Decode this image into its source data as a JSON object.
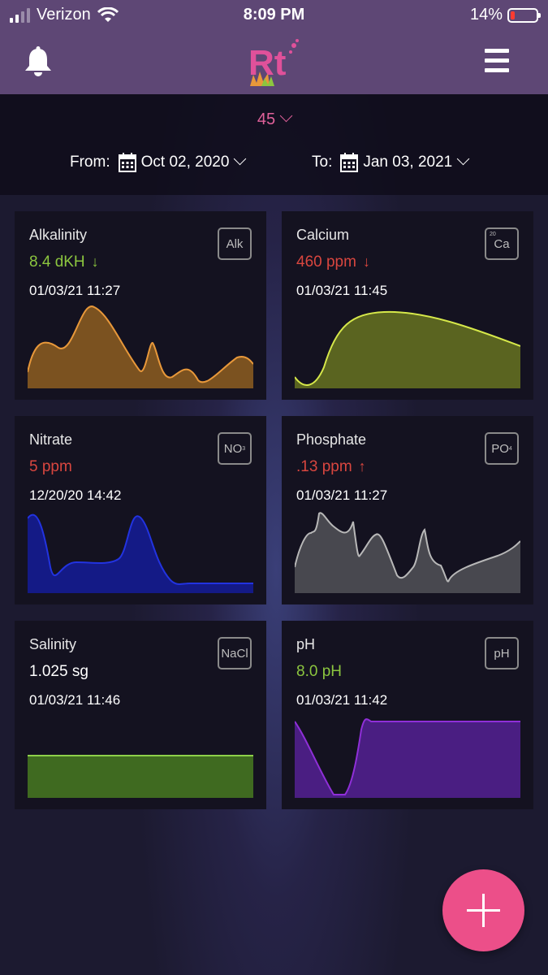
{
  "status_bar": {
    "carrier": "Verizon",
    "time": "8:09 PM",
    "battery": "14%"
  },
  "header": {
    "logo_text": "Rt",
    "left_icon": "bell-icon",
    "right_icon": "hamburger-menu-icon"
  },
  "filter": {
    "period": "45",
    "from_label": "From:",
    "from_date": "Oct 02, 2020",
    "to_label": "To:",
    "to_date": "Jan 03, 2021"
  },
  "colors": {
    "header": "#5e4775",
    "accent_pink": "#e0619a",
    "good": "#8cc63f",
    "bad": "#d9463f",
    "alkalinity": "#e8983a",
    "calcium": "#d6e84a",
    "nitrate": "#2233e0",
    "phosphate": "#b8b8b8",
    "salinity": "#8ed04a",
    "ph": "#8f2fd8",
    "fab": "#ec4f89"
  },
  "cards": [
    {
      "name": "Alkalinity",
      "value": "8.4 dKH",
      "trend": "down",
      "timestamp": "01/03/21 11:27",
      "badge": "Alk",
      "status": "good"
    },
    {
      "name": "Calcium",
      "value": "460 ppm",
      "trend": "down",
      "timestamp": "01/03/21 11:45",
      "badge": "Ca",
      "badge_super": "20",
      "status": "bad"
    },
    {
      "name": "Nitrate",
      "value": "5 ppm",
      "trend": "",
      "timestamp": "12/20/20 14:42",
      "badge": "NO",
      "badge_sub": "3",
      "status": "bad"
    },
    {
      "name": "Phosphate",
      "value": ".13 ppm",
      "trend": "up",
      "timestamp": "01/03/21 11:27",
      "badge": "PO",
      "badge_sub": "4",
      "status": "bad"
    },
    {
      "name": "Salinity",
      "value": "1.025 sg",
      "trend": "",
      "timestamp": "01/03/21 11:46",
      "badge": "NaCl",
      "status": "neutral"
    },
    {
      "name": "pH",
      "value": "8.0 pH",
      "trend": "",
      "timestamp": "01/03/21 11:42",
      "badge": "pH",
      "status": "good"
    }
  ],
  "fab": {
    "icon": "plus-icon"
  }
}
